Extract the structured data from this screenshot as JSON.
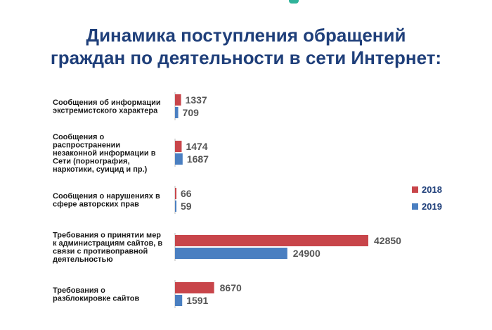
{
  "title_lines": [
    "Динамика поступления обращений",
    "граждан по деятельности в сети Интернет:"
  ],
  "colors": {
    "2018": "#c8454a",
    "2019": "#4a7fc1",
    "axis": "#bbbbbb",
    "title": "#1f3f7a"
  },
  "chart_data": {
    "type": "bar",
    "orientation": "horizontal",
    "categories": [
      "Сообщения об информации экстремистского характера",
      "Сообщения о распространении незаконной информации в Сети (порнография, наркотики, суицид и пр.)",
      "Сообщения о нарушениях в сфере авторских прав",
      "Требования о принятии мер к администрациям сайтов, в связи с противоправной деятельностью",
      "Требования о разблокировке сайтов"
    ],
    "category_lines": [
      [
        "Сообщения об информации",
        "экстремистского характера"
      ],
      [
        "Сообщения о",
        "распространении",
        "незаконной информации в",
        "Сети (порнография,",
        "наркотики, суицид и пр.)"
      ],
      [
        "Сообщения о нарушениях в",
        "сфере авторских прав"
      ],
      [
        "Требования о принятии мер",
        "к администрациям сайтов, в",
        "связи с противоправной",
        "деятельностью"
      ],
      [
        "Требования о",
        "разблокировке сайтов"
      ]
    ],
    "series": [
      {
        "name": "2018",
        "values": [
          1337,
          1474,
          66,
          42850,
          8670
        ]
      },
      {
        "name": "2019",
        "values": [
          709,
          1687,
          59,
          24900,
          1591
        ]
      }
    ],
    "legend_position": "right",
    "grid": false
  }
}
